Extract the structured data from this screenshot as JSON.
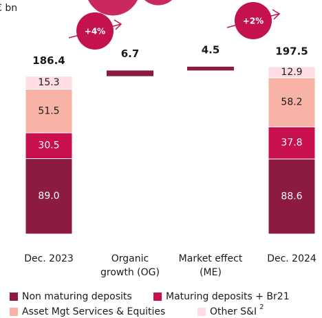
{
  "chart_data": {
    "type": "waterfall",
    "unit_label": "€ bn",
    "categories": [
      "Dec. 2023",
      "Organic\ngrowth (OG)",
      "Market effect\n(ME)",
      "Dec. 2024"
    ],
    "series": [
      {
        "name": "Non maturing deposits",
        "color": "#8c1b3f",
        "values": [
          89.0,
          null,
          null,
          88.6
        ],
        "value_labels": [
          "89.0",
          null,
          null,
          "88.6"
        ]
      },
      {
        "name": "Maturing deposits + Br21",
        "color": "#c8104f",
        "values": [
          30.5,
          null,
          null,
          37.8
        ]
      },
      {
        "name": "Asset Mgt Services & Equities",
        "color": "#f8b2a6",
        "values": [
          51.5,
          null,
          null,
          58.2
        ]
      },
      {
        "name": "Other S&I",
        "footnote": "2",
        "color": "#fddde3",
        "values": [
          15.3,
          null,
          null,
          12.9
        ]
      }
    ],
    "totals": [
      186.4,
      null,
      null,
      197.5
    ],
    "changes": [
      null,
      6.7,
      4.5,
      null
    ],
    "change_color": "#8c1b3f",
    "growth_labels": [
      "+4%",
      "+2%"
    ],
    "growth_color": "#c4124f"
  }
}
